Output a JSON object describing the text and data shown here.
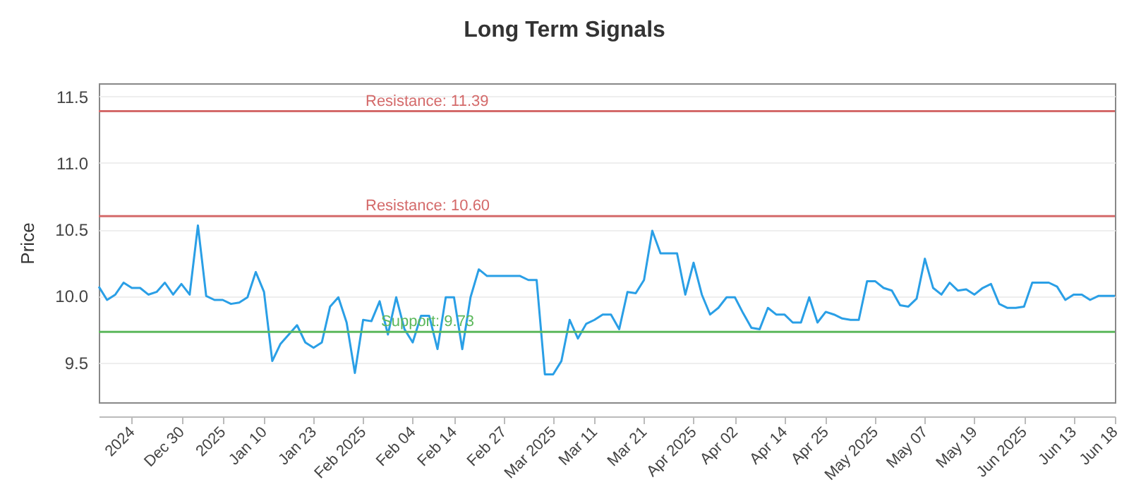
{
  "chart_data": {
    "type": "line",
    "title": "Long Term Signals",
    "ylabel": "Price",
    "categories": [
      null,
      null,
      null,
      null,
      "2024",
      null,
      null,
      null,
      null,
      null,
      "Dec 30",
      null,
      null,
      null,
      null,
      "2025",
      null,
      null,
      null,
      null,
      "Jan 10",
      null,
      null,
      null,
      null,
      null,
      "Jan 23",
      null,
      null,
      null,
      null,
      null,
      "Feb 2025",
      null,
      null,
      null,
      null,
      null,
      "Feb 04",
      null,
      null,
      null,
      null,
      "Feb 14",
      null,
      null,
      null,
      null,
      null,
      "Feb 27",
      null,
      null,
      null,
      null,
      null,
      "Mar 2025",
      null,
      null,
      null,
      null,
      "Mar 11",
      null,
      null,
      null,
      null,
      null,
      "Mar 21",
      null,
      null,
      null,
      null,
      null,
      "Apr 2025",
      null,
      null,
      null,
      null,
      "Apr 02",
      null,
      null,
      null,
      null,
      null,
      "Apr 14",
      null,
      null,
      null,
      null,
      "Apr 25",
      null,
      null,
      null,
      null,
      null,
      "May 2025",
      null,
      null,
      null,
      null,
      null,
      "May 07",
      null,
      null,
      null,
      null,
      null,
      "May 19",
      null,
      null,
      null,
      null,
      null,
      "Jun 2025",
      null,
      null,
      null,
      null,
      null,
      "Jun 13",
      null,
      null,
      null,
      null,
      "Jun 18"
    ],
    "series": [
      {
        "color": "#2a9fe6",
        "values": [
          10.07,
          9.97,
          10.01,
          10.1,
          10.06,
          10.06,
          10.01,
          10.03,
          10.1,
          10.01,
          10.09,
          10.01,
          10.53,
          10.0,
          9.97,
          9.97,
          9.94,
          9.95,
          9.99,
          10.18,
          10.03,
          9.51,
          9.64,
          9.71,
          9.78,
          9.65,
          9.61,
          9.65,
          9.92,
          9.99,
          9.8,
          9.42,
          9.82,
          9.81,
          9.96,
          9.71,
          9.99,
          9.75,
          9.65,
          9.85,
          9.85,
          9.6,
          9.99,
          9.99,
          9.6,
          9.99,
          10.2,
          10.15,
          10.15,
          10.15,
          10.15,
          10.15,
          10.12,
          10.12,
          9.41,
          9.41,
          9.51,
          9.82,
          9.68,
          9.79,
          9.82,
          9.86,
          9.86,
          9.75,
          10.03,
          10.02,
          10.12,
          10.49,
          10.32,
          10.32,
          10.32,
          10.01,
          10.25,
          10.01,
          9.86,
          9.91,
          9.99,
          9.99,
          9.87,
          9.76,
          9.75,
          9.91,
          9.86,
          9.86,
          9.8,
          9.8,
          9.99,
          9.8,
          9.88,
          9.86,
          9.83,
          9.82,
          9.82,
          10.11,
          10.11,
          10.06,
          10.04,
          9.93,
          9.92,
          9.98,
          10.28,
          10.06,
          10.01,
          10.1,
          10.04,
          10.05,
          10.01,
          10.06,
          10.09,
          9.94,
          9.91,
          9.91,
          9.92,
          10.1,
          10.1,
          10.1,
          10.07,
          9.97,
          10.01,
          10.01,
          9.97,
          10.0,
          10.0,
          10.0
        ]
      }
    ],
    "ylim": [
      9.2,
      11.6
    ],
    "yticks": [
      {
        "value": 9.5,
        "label": "9.5"
      },
      {
        "value": 10,
        "label": "10.0"
      },
      {
        "value": 10.5,
        "label": "10.5"
      },
      {
        "value": 11,
        "label": "11.0"
      },
      {
        "value": 11.5,
        "label": "11.5"
      }
    ],
    "grid": "y",
    "marker": "none",
    "line_style": "solid",
    "ref_lines": [
      {
        "axis": "y",
        "value": 11.39,
        "label": "Resistance: 11.39",
        "color": "#d46a6a"
      },
      {
        "axis": "y",
        "value": 10.6,
        "label": "Resistance: 10.60",
        "color": "#d46a6a"
      },
      {
        "axis": "y",
        "value": 9.73,
        "label": "Support: 9.73",
        "color": "#5cb85c"
      }
    ]
  }
}
